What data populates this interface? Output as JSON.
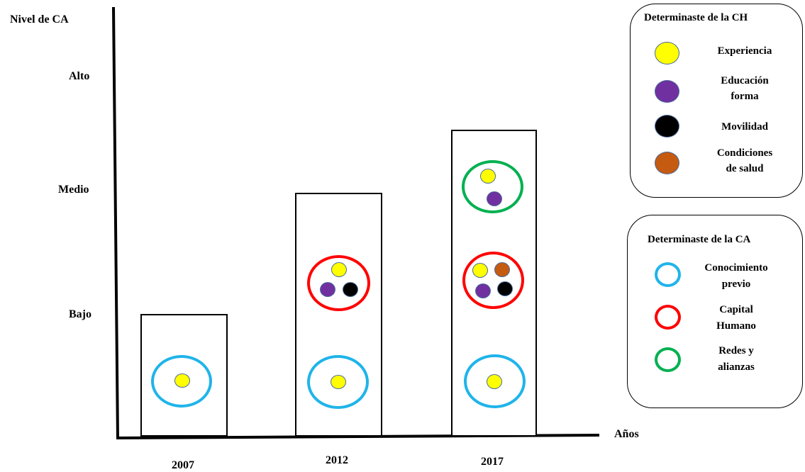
{
  "axes": {
    "y_title": "Nivel de CA",
    "x_title": "Años",
    "y_levels": [
      "Alto",
      "Medio",
      "Bajo"
    ],
    "x_years": [
      "2007",
      "2012",
      "2017"
    ]
  },
  "legend_ch": {
    "title": "Determinaste de la CH",
    "items": [
      {
        "label": "Experiencia",
        "color": "#ffff00"
      },
      {
        "label_lines": [
          "Educación",
          "forma"
        ],
        "color": "#7030a0"
      },
      {
        "label": "Movilidad",
        "color": "#000000"
      },
      {
        "label_lines": [
          "Condiciones",
          "de salud"
        ],
        "color": "#c55a11"
      }
    ]
  },
  "legend_ca": {
    "title": "Determinaste de la CA",
    "items": [
      {
        "label_lines": [
          "Conocimiento",
          "previo"
        ],
        "color": "#1fb4ea"
      },
      {
        "label_lines": [
          "Capital",
          "Humano"
        ],
        "color": "#ff0000"
      },
      {
        "label_lines": [
          "Redes y",
          "alianzas"
        ],
        "color": "#00b050"
      }
    ]
  },
  "colors": {
    "experiencia": "#ffff00",
    "educacion": "#7030a0",
    "movilidad": "#000000",
    "salud": "#c55a11",
    "conocimiento": "#1fb4ea",
    "capital_humano": "#ff0000",
    "redes": "#00b050"
  }
}
